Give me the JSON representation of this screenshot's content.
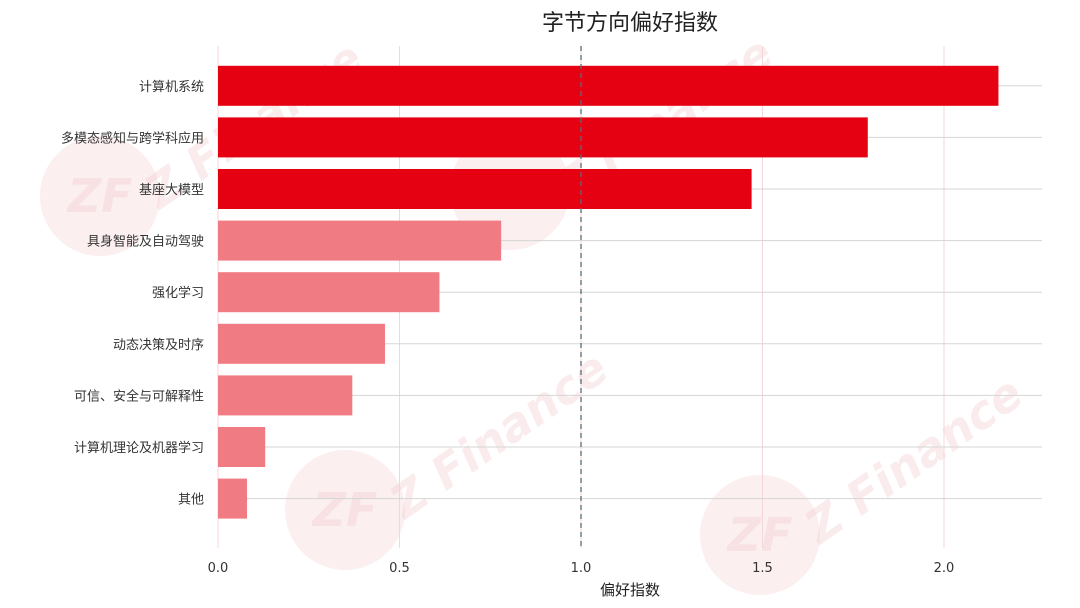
{
  "chart_data": {
    "type": "bar",
    "orientation": "horizontal",
    "title": "字节方向偏好指数",
    "xlabel": "偏好指数",
    "ylabel": "",
    "categories": [
      "计算机系统",
      "多模态感知与跨学科应用",
      "基座大模型",
      "具身智能及自动驾驶",
      "强化学习",
      "动态决策及时序",
      "可信、安全与可解释性",
      "计算机理论及机器学习",
      "其他"
    ],
    "values": [
      2.15,
      1.79,
      1.47,
      0.78,
      0.61,
      0.46,
      0.37,
      0.13,
      0.08
    ],
    "xlim": [
      0,
      2.27
    ],
    "xticks": [
      "0.0",
      "0.5",
      "1.0",
      "1.5",
      "2.0"
    ],
    "reference_line": 1.0,
    "grid": true,
    "colors": {
      "above_reference": "#e50012",
      "below_reference": "#f07b82"
    }
  },
  "watermark": {
    "text": "Z Finance",
    "logo_text": "ZF"
  }
}
